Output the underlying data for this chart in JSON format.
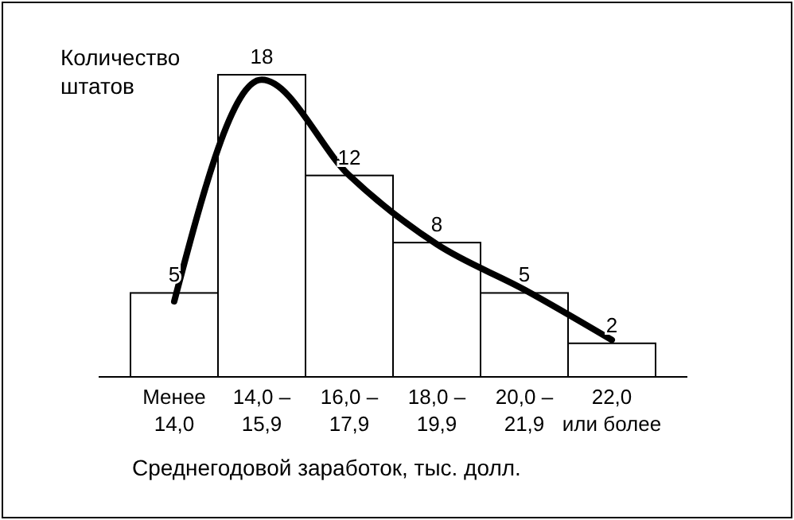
{
  "chart_data": {
    "type": "bar",
    "ylabel": "Количество\nштатов",
    "xlabel": "Среднегодовой заработок, тыс. долл.",
    "categories": [
      "Менее\n14,0",
      "14,0 –\n15,9",
      "16,0 –\n17,9",
      "18,0 –\n19,9",
      "20,0 –\n21,9",
      "22,0\nили более"
    ],
    "series": [
      {
        "color": "#ffffff",
        "values": [
          5,
          18,
          12,
          8,
          5,
          2
        ],
        "value_labels": [
          "5",
          "18",
          "12",
          "8",
          "5",
          "2"
        ]
      },
      {
        "type": "line",
        "color": "#000000",
        "values": [
          4.5,
          17.7,
          12,
          7.9,
          5.2,
          2.2
        ]
      }
    ]
  }
}
